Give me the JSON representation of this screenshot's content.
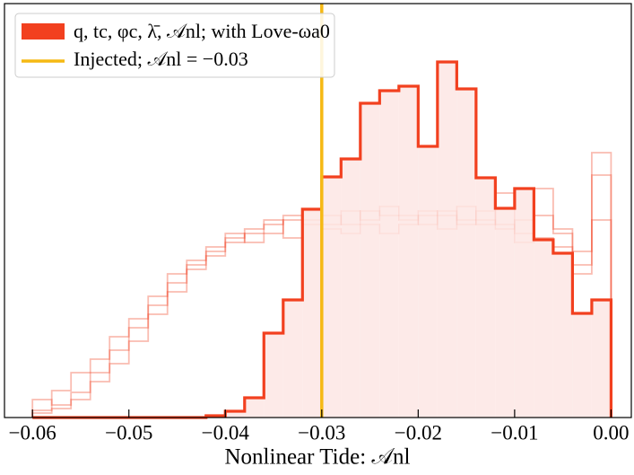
{
  "chart_data": {
    "type": "histogram",
    "xlabel": "Nonlinear Tide: 𝒜nl",
    "xlim": [
      -0.0629,
      0.0021
    ],
    "ylim": [
      0,
      461
    ],
    "xticks": [
      {
        "value": -0.06,
        "label": "−0.06"
      },
      {
        "value": -0.05,
        "label": "−0.05"
      },
      {
        "value": -0.04,
        "label": "−0.04"
      },
      {
        "value": -0.03,
        "label": "−0.03"
      },
      {
        "value": -0.02,
        "label": "−0.02"
      },
      {
        "value": -0.01,
        "label": "−0.01"
      },
      {
        "value": 0,
        "label": "0.00"
      }
    ],
    "bins": [
      -0.06,
      -0.058,
      -0.056,
      -0.054,
      -0.052,
      -0.05,
      -0.048,
      -0.046,
      -0.044,
      -0.042,
      -0.04,
      -0.038,
      -0.036,
      -0.034,
      -0.032,
      -0.03,
      -0.028,
      -0.026,
      -0.024,
      -0.022,
      -0.02,
      -0.018,
      -0.016,
      -0.014,
      -0.012,
      -0.01,
      -0.008,
      -0.006,
      -0.004,
      -0.002,
      0
    ],
    "series": [
      {
        "name": "q, tc, φc, λ̄, 𝒜nl; with Love-ωa0",
        "color": "#f2401f",
        "fill": "#fde6e4",
        "values": [
          0,
          0,
          0,
          0,
          0,
          0,
          0,
          0,
          0,
          2,
          7,
          22,
          94,
          131,
          232,
          268,
          288,
          350,
          364,
          369,
          302,
          396,
          366,
          267,
          233,
          255,
          198,
          183,
          116,
          131
        ]
      }
    ],
    "draws": {
      "color": "#f2401f",
      "values": [
        [
          20,
          14,
          28,
          40,
          60,
          85,
          115,
          140,
          165,
          180,
          195,
          205,
          215,
          225,
          220,
          225,
          215,
          230,
          225,
          220,
          230,
          225,
          215,
          220,
          210,
          220,
          200,
          190,
          170,
          220
        ],
        [
          8,
          30,
          50,
          65,
          90,
          110,
          135,
          160,
          175,
          185,
          200,
          210,
          220,
          200,
          230,
          215,
          230,
          220,
          235,
          225,
          215,
          230,
          220,
          230,
          215,
          195,
          225,
          205,
          185,
          270
        ],
        [
          5,
          10,
          20,
          50,
          75,
          100,
          125,
          150,
          170,
          190,
          205,
          195,
          205,
          220,
          215,
          210,
          205,
          215,
          205,
          215,
          225,
          210,
          235,
          215,
          250,
          205,
          255,
          210,
          160,
          295
        ]
      ]
    },
    "vline": {
      "name": "Injected; 𝒜nl = −0.03",
      "x": -0.03,
      "color": "#f5b914"
    },
    "legend": "upper left"
  }
}
